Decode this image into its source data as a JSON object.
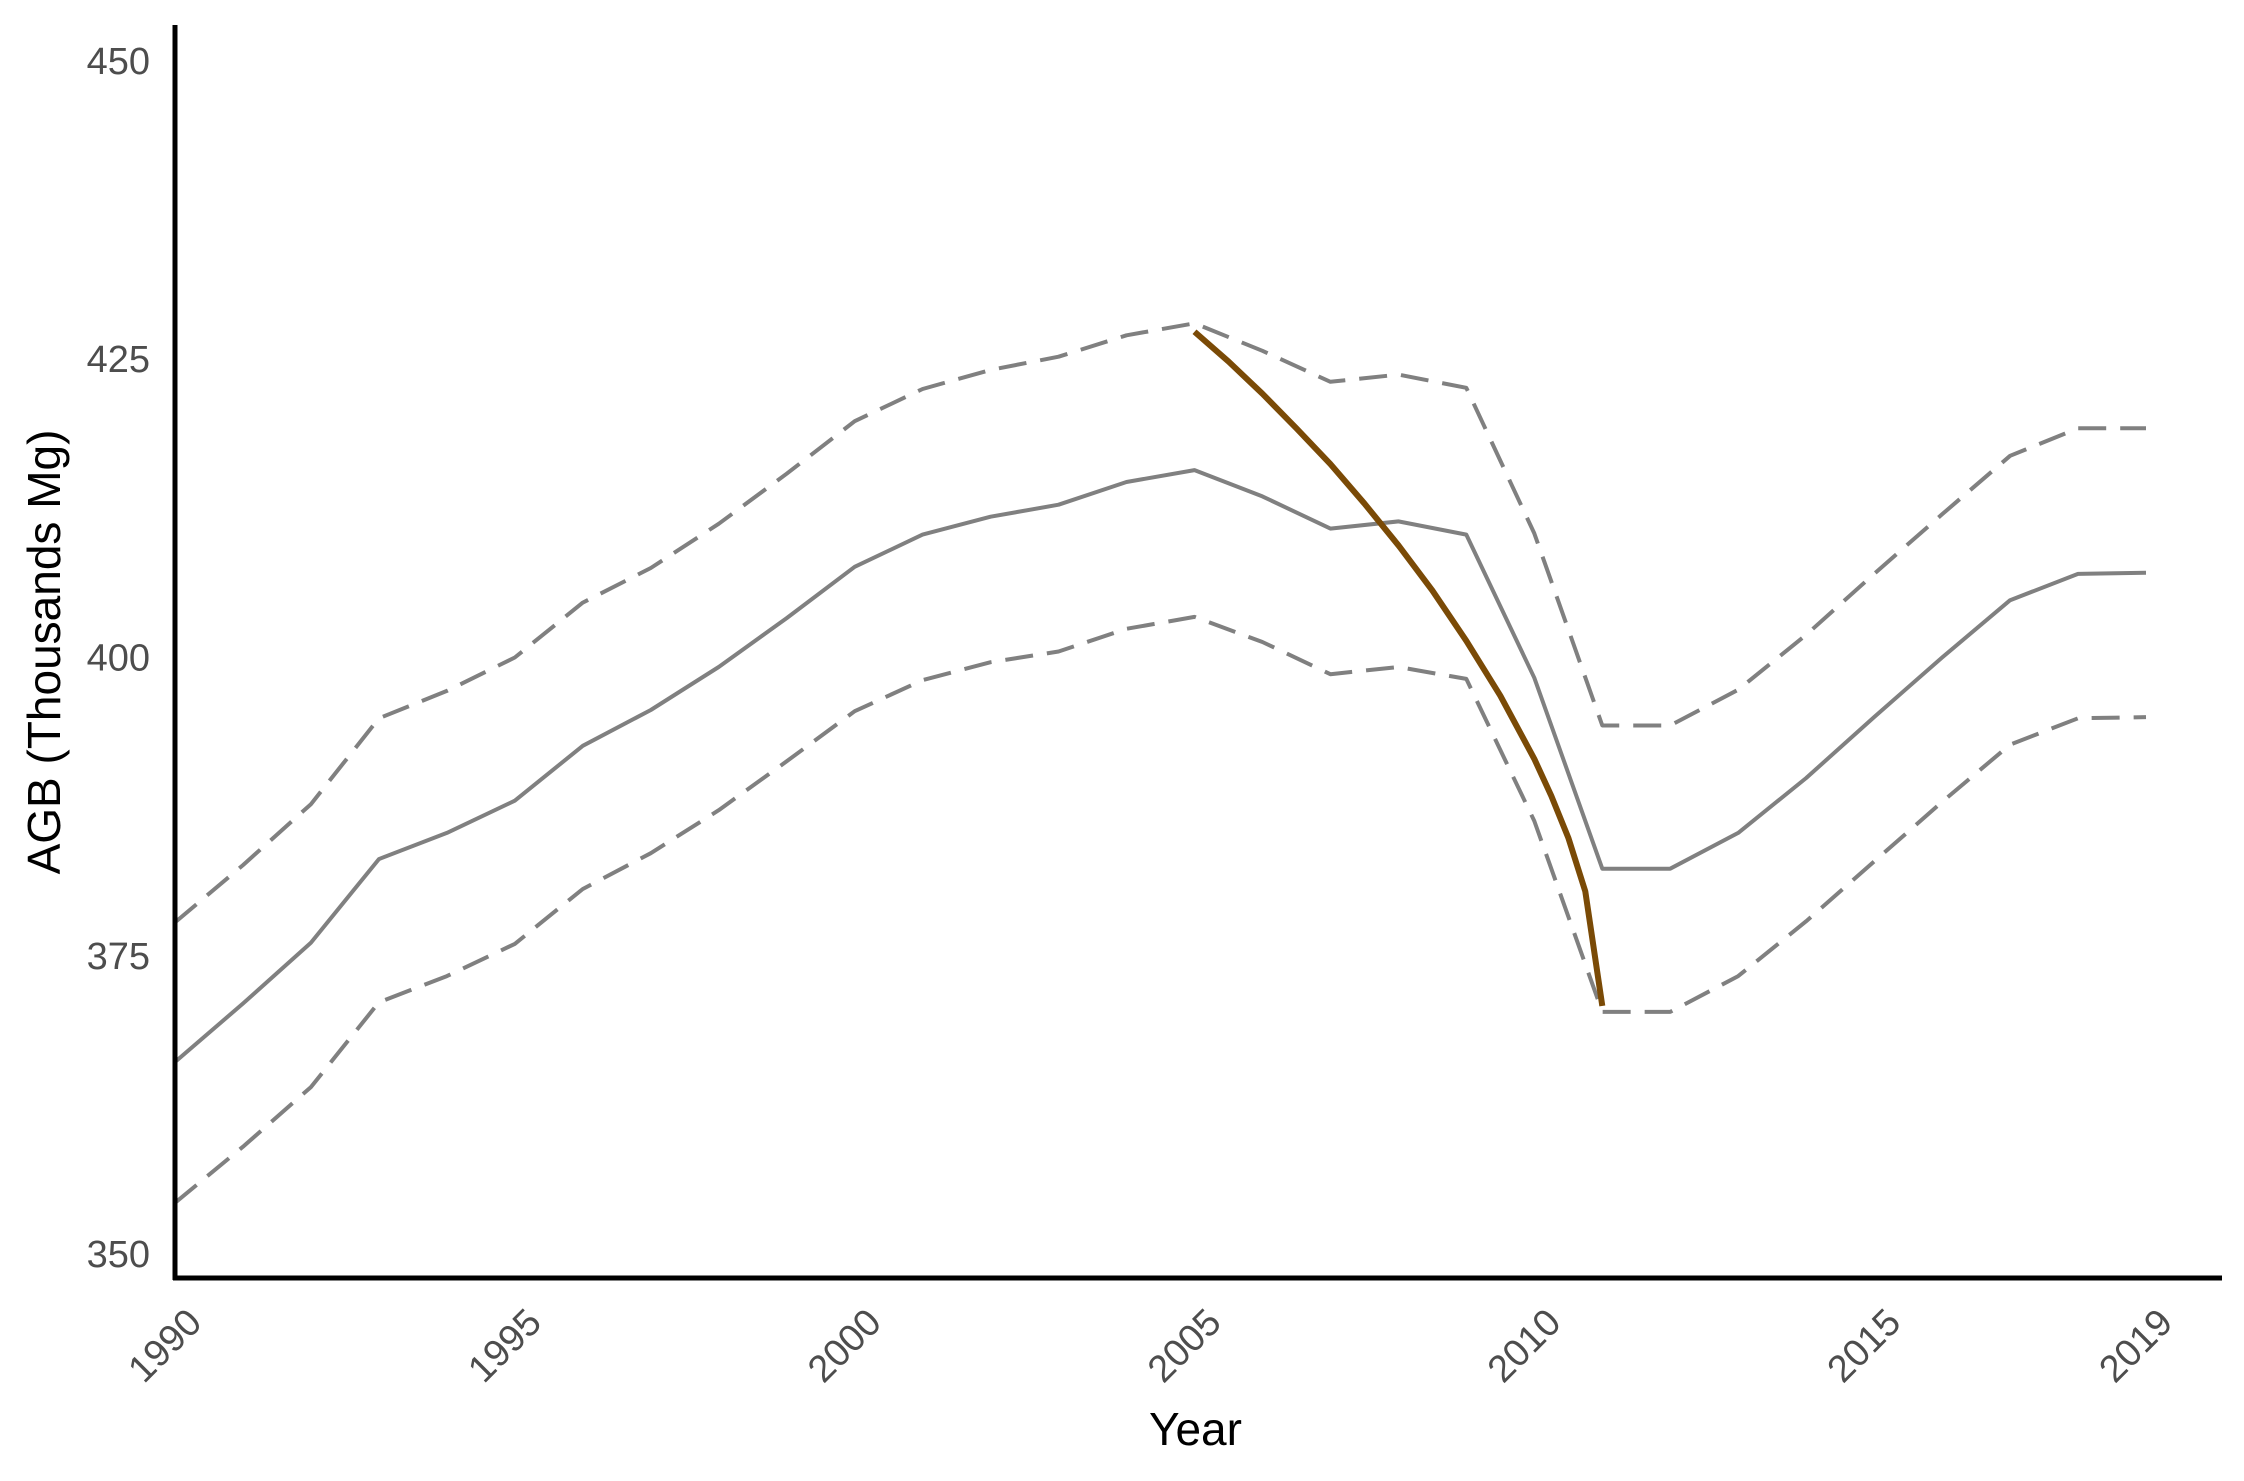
{
  "chart_data": {
    "type": "line",
    "title": "",
    "xlabel": "Year",
    "ylabel": "AGB (Thousands Mg)",
    "xlim": [
      1990,
      2019
    ],
    "ylim": [
      348,
      453
    ],
    "x_ticks": [
      1990,
      1995,
      2000,
      2005,
      2010,
      2015,
      2019
    ],
    "x_tick_labels": [
      "1990",
      "1995",
      "2000",
      "2005",
      "2010",
      "2015",
      "2019"
    ],
    "y_ticks": [
      350,
      375,
      400,
      425,
      450
    ],
    "y_tick_labels": [
      "350",
      "375",
      "400",
      "425",
      "450"
    ],
    "grid": false,
    "legend": "none",
    "x": [
      1990,
      1991,
      1992,
      1993,
      1994,
      1995,
      1996,
      1997,
      1998,
      1999,
      2000,
      2001,
      2002,
      2003,
      2004,
      2005,
      2006,
      2007,
      2008,
      2009,
      2010,
      2011,
      2012,
      2013,
      2014,
      2015,
      2016,
      2017,
      2018,
      2019
    ],
    "series": [
      {
        "style": "solid",
        "color": "#808080",
        "values": [
          366.1,
          371.0,
          376.1,
          383.1,
          385.3,
          388.0,
          392.6,
          395.6,
          399.2,
          403.3,
          407.6,
          410.3,
          411.8,
          412.8,
          414.7,
          415.7,
          413.5,
          410.8,
          411.4,
          410.3,
          398.3,
          382.3,
          382.3,
          385.3,
          389.9,
          395.0,
          400.0,
          404.8,
          407.0,
          407.1
        ]
      },
      {
        "style": "dashed",
        "color": "#808080",
        "values": [
          377.8,
          382.6,
          387.7,
          394.9,
          397.2,
          400.0,
          404.6,
          407.5,
          411.2,
          415.4,
          419.8,
          422.5,
          424.1,
          425.2,
          427.0,
          428.0,
          425.7,
          423.1,
          423.7,
          422.6,
          410.4,
          394.3,
          394.3,
          397.3,
          401.9,
          407.0,
          412.0,
          416.9,
          419.2,
          419.2
        ]
      },
      {
        "style": "dashed",
        "color": "#808080",
        "values": [
          354.3,
          359.0,
          364.0,
          371.1,
          373.3,
          376.0,
          380.6,
          383.6,
          387.2,
          391.3,
          395.5,
          398.1,
          399.6,
          400.5,
          402.4,
          403.4,
          401.3,
          398.6,
          399.2,
          398.2,
          386.3,
          370.3,
          370.3,
          373.3,
          377.9,
          382.9,
          387.9,
          392.7,
          394.9,
          395.0
        ]
      },
      {
        "style": "solid",
        "color": "#7a4a06",
        "x": [
          2005.0,
          2005.5,
          2006.0,
          2006.5,
          2007.0,
          2007.5,
          2008.0,
          2008.5,
          2009.0,
          2009.5,
          2010.0,
          2010.25,
          2010.5,
          2010.75,
          2011.0
        ],
        "values": [
          427.3,
          424.8,
          422.1,
          419.2,
          416.2,
          412.9,
          409.4,
          405.6,
          401.4,
          396.8,
          391.5,
          388.4,
          384.9,
          380.4,
          370.8
        ]
      }
    ]
  }
}
